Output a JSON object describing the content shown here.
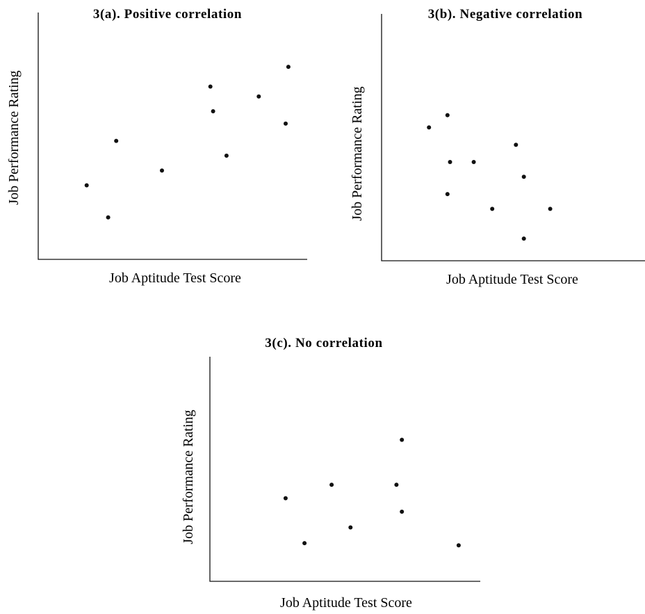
{
  "chart_data": [
    {
      "type": "scatter",
      "title": "3(a).  Positive correlation",
      "xlabel": "Job Aptitude Test Score",
      "ylabel": "Job Performance Rating",
      "xlim": [
        0,
        100
      ],
      "ylim": [
        0,
        100
      ],
      "grid": false,
      "x": [
        18,
        26,
        29,
        46,
        64,
        65,
        70,
        82,
        92,
        93
      ],
      "y": [
        30,
        17,
        48,
        36,
        70,
        60,
        42,
        66,
        55,
        78
      ]
    },
    {
      "type": "scatter",
      "title": "3(b).  Negative correlation",
      "xlabel": "Job Aptitude Test Score",
      "ylabel": "Job Performance Rating",
      "xlim": [
        0,
        100
      ],
      "ylim": [
        0,
        100
      ],
      "grid": false,
      "x": [
        18,
        25,
        26,
        25,
        35,
        42,
        51,
        54,
        54,
        64
      ],
      "y": [
        54,
        59,
        40,
        27,
        40,
        21,
        47,
        34,
        9,
        21
      ]
    },
    {
      "type": "scatter",
      "title": "3(c).  No correlation",
      "xlabel": "Job Aptitude Test Score",
      "ylabel": "Job Performance Rating",
      "xlim": [
        0,
        100
      ],
      "ylim": [
        0,
        100
      ],
      "grid": false,
      "x": [
        28,
        35,
        45,
        52,
        69,
        71,
        71,
        92
      ],
      "y": [
        37,
        17,
        43,
        24,
        43,
        31,
        63,
        16
      ]
    }
  ]
}
